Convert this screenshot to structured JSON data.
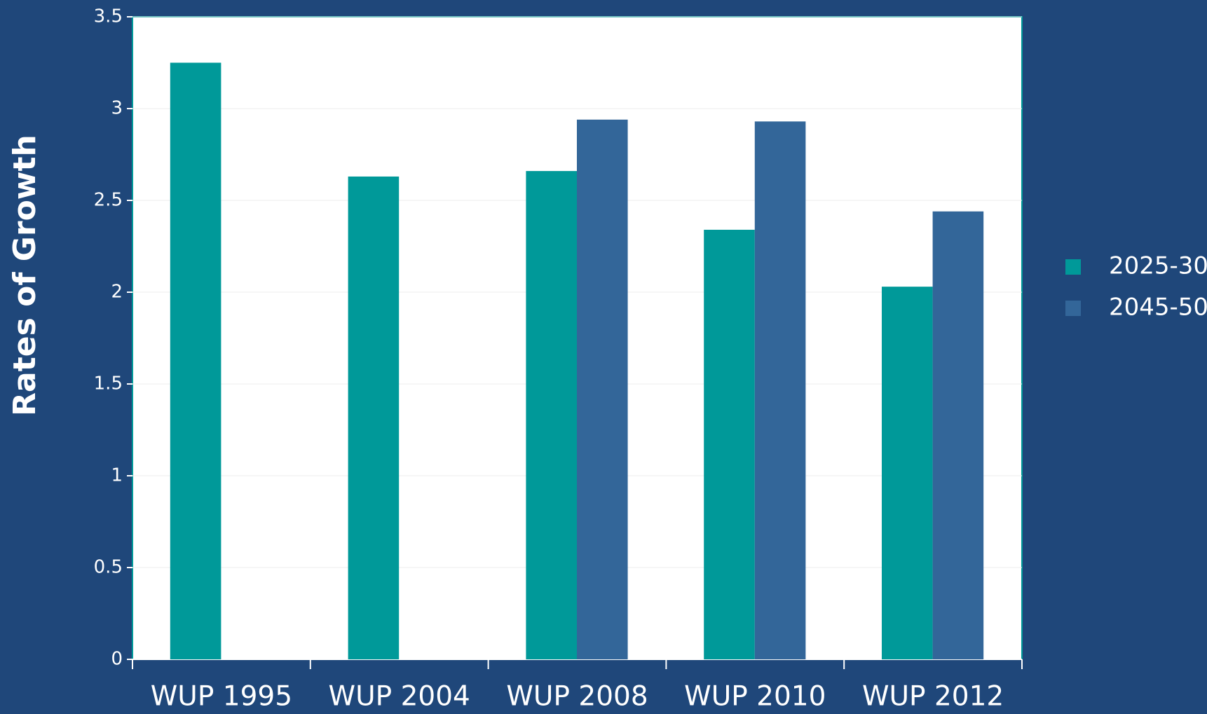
{
  "chart_data": {
    "type": "bar",
    "y_label": "Rates of Growth",
    "categories": [
      "WUP 1995",
      "WUP 2004",
      "WUP 2008",
      "WUP 2010",
      "WUP 2012"
    ],
    "series": [
      {
        "name": "2025-30",
        "color": "#009999",
        "values": [
          3.25,
          2.63,
          2.66,
          2.34,
          2.03
        ]
      },
      {
        "name": "2045-50",
        "color": "#336699",
        "values": [
          null,
          null,
          2.94,
          2.93,
          2.44
        ]
      }
    ],
    "ylim": [
      0,
      3.5
    ],
    "yticks": [
      0,
      0.5,
      1,
      1.5,
      2,
      2.5,
      3,
      3.5
    ],
    "grid": true,
    "legend": "right"
  }
}
